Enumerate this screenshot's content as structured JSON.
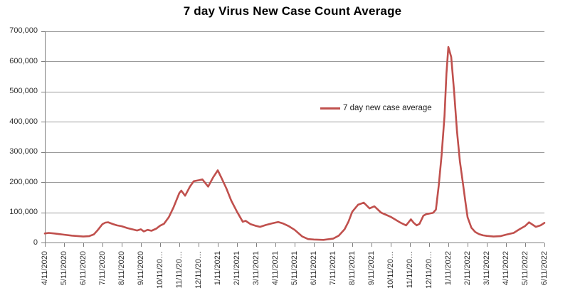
{
  "chart": {
    "title": "7 day Virus New Case Count Average",
    "legend_label": "7 day new case average"
  },
  "colors": {
    "line": "#c0504d",
    "gridline": "#9b9b9b",
    "axis": "#7f7f7f",
    "label_text": "#2e2e2e",
    "title_text": "#000000",
    "background": "#ffffff"
  },
  "chart_data": {
    "type": "line",
    "title": "7 day Virus New Case Count Average",
    "xlabel": "",
    "ylabel": "",
    "ylim": [
      0,
      700000
    ],
    "y_tick_interval": 100000,
    "grid": true,
    "legend_position": "inside-center-right",
    "x_axis_label_rotation_deg": -90,
    "y_ticks": [
      {
        "value": 0,
        "label": "0"
      },
      {
        "value": 100000,
        "label": "100,000"
      },
      {
        "value": 200000,
        "label": "200,000"
      },
      {
        "value": 300000,
        "label": "300,000"
      },
      {
        "value": 400000,
        "label": "400,000"
      },
      {
        "value": 500000,
        "label": "500,000"
      },
      {
        "value": 600000,
        "label": "600,000"
      },
      {
        "value": 700000,
        "label": "700,000"
      }
    ],
    "categories": [
      "4/11/2020",
      "5/11/2020",
      "6/11/2020",
      "7/11/2020",
      "8/11/2020",
      "9/11/2020",
      "10/11/20…",
      "11/11/20…",
      "12/11/20…",
      "1/11/2021",
      "2/11/2021",
      "3/11/2021",
      "4/11/2021",
      "5/11/2021",
      "6/11/2021",
      "7/11/2021",
      "8/11/2021",
      "9/11/2021",
      "10/11/20…",
      "11/11/20…",
      "12/11/20…",
      "1/11/2022",
      "2/11/2022",
      "3/11/2022",
      "4/11/2022",
      "5/11/2022",
      "6/11/2022"
    ],
    "x_unit": "months since 4/11/2020 (fractional = estimated weekly readings)",
    "series": [
      {
        "name": "7 day new case average",
        "color": "#c0504d",
        "points": [
          [
            0,
            31000
          ],
          [
            0.2,
            33000
          ],
          [
            0.5,
            31000
          ],
          [
            0.75,
            29000
          ],
          [
            1,
            27000
          ],
          [
            1.4,
            24000
          ],
          [
            1.7,
            22500
          ],
          [
            2,
            21000
          ],
          [
            2.3,
            22000
          ],
          [
            2.55,
            28000
          ],
          [
            2.75,
            42000
          ],
          [
            3,
            62000
          ],
          [
            3.15,
            67000
          ],
          [
            3.3,
            68000
          ],
          [
            3.55,
            62000
          ],
          [
            3.75,
            58000
          ],
          [
            4,
            55000
          ],
          [
            4.3,
            49000
          ],
          [
            4.6,
            44000
          ],
          [
            4.8,
            41000
          ],
          [
            5,
            45000
          ],
          [
            5.15,
            38000
          ],
          [
            5.35,
            43000
          ],
          [
            5.55,
            40000
          ],
          [
            5.8,
            47000
          ],
          [
            6,
            57000
          ],
          [
            6.2,
            63000
          ],
          [
            6.45,
            85000
          ],
          [
            6.7,
            118000
          ],
          [
            7,
            165000
          ],
          [
            7.1,
            173000
          ],
          [
            7.3,
            156000
          ],
          [
            7.55,
            186000
          ],
          [
            7.75,
            204000
          ],
          [
            8,
            207000
          ],
          [
            8.2,
            210000
          ],
          [
            8.5,
            186000
          ],
          [
            8.75,
            216000
          ],
          [
            9,
            240000
          ],
          [
            9.2,
            214000
          ],
          [
            9.45,
            180000
          ],
          [
            9.7,
            140000
          ],
          [
            10,
            103000
          ],
          [
            10.3,
            70000
          ],
          [
            10.45,
            73000
          ],
          [
            10.7,
            62000
          ],
          [
            11,
            56000
          ],
          [
            11.2,
            53000
          ],
          [
            11.5,
            59000
          ],
          [
            11.8,
            64000
          ],
          [
            12,
            67000
          ],
          [
            12.15,
            69000
          ],
          [
            12.4,
            64000
          ],
          [
            12.7,
            55000
          ],
          [
            13,
            43000
          ],
          [
            13.4,
            21000
          ],
          [
            13.7,
            12500
          ],
          [
            14,
            11000
          ],
          [
            14.5,
            10000
          ],
          [
            15,
            14000
          ],
          [
            15.3,
            24000
          ],
          [
            15.6,
            45000
          ],
          [
            15.8,
            70000
          ],
          [
            16,
            103000
          ],
          [
            16.3,
            126000
          ],
          [
            16.6,
            133000
          ],
          [
            16.9,
            114000
          ],
          [
            17.15,
            121000
          ],
          [
            17.5,
            100000
          ],
          [
            18,
            86000
          ],
          [
            18.5,
            67000
          ],
          [
            18.8,
            58000
          ],
          [
            19.05,
            78000
          ],
          [
            19.2,
            66000
          ],
          [
            19.35,
            58000
          ],
          [
            19.5,
            63000
          ],
          [
            19.7,
            90000
          ],
          [
            19.85,
            95000
          ],
          [
            20,
            97000
          ],
          [
            20.2,
            99000
          ],
          [
            20.35,
            110000
          ],
          [
            20.5,
            190000
          ],
          [
            20.65,
            290000
          ],
          [
            20.8,
            420000
          ],
          [
            20.9,
            560000
          ],
          [
            21,
            648000
          ],
          [
            21.15,
            615000
          ],
          [
            21.3,
            500000
          ],
          [
            21.45,
            370000
          ],
          [
            21.6,
            270000
          ],
          [
            21.75,
            200000
          ],
          [
            21.9,
            130000
          ],
          [
            22,
            85000
          ],
          [
            22.2,
            50000
          ],
          [
            22.4,
            36000
          ],
          [
            22.6,
            29000
          ],
          [
            22.8,
            25000
          ],
          [
            23,
            23000
          ],
          [
            23.35,
            21000
          ],
          [
            23.7,
            22000
          ],
          [
            24,
            27000
          ],
          [
            24.4,
            33000
          ],
          [
            24.7,
            45000
          ],
          [
            25,
            56000
          ],
          [
            25.2,
            68000
          ],
          [
            25.55,
            53000
          ],
          [
            25.8,
            58000
          ],
          [
            26,
            66000
          ]
        ]
      }
    ]
  }
}
